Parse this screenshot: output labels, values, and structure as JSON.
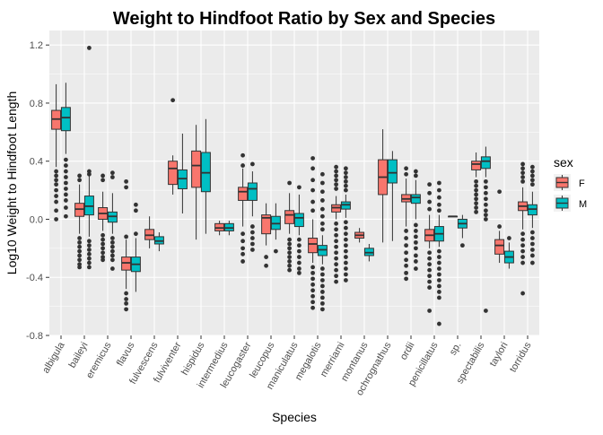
{
  "chart_data": {
    "type": "box",
    "title": "Weight to Hindfoot Ratio by Sex and Species",
    "xlabel": "Species",
    "ylabel": "Log10 Weight to Hindfoot Length",
    "ylim": [
      -0.8,
      1.3
    ],
    "yticks": [
      -0.8,
      -0.4,
      0.0,
      0.4,
      0.8,
      1.2
    ],
    "ytick_labels": [
      "-0.8",
      "-0.4",
      "0.0",
      "0.4",
      "0.8",
      "1.2"
    ],
    "grid": true,
    "legend": {
      "title": "sex",
      "placement": "right",
      "entries": [
        {
          "label": "F",
          "color": "#F8766D"
        },
        {
          "label": "M",
          "color": "#00BFC4"
        }
      ]
    },
    "colors": {
      "F": "#F8766D",
      "M": "#00BFC4",
      "panel": "#EBEBEB",
      "grid": "#FFFFFF",
      "outline": "#333333"
    },
    "categories": [
      "albigula",
      "baileyi",
      "eremicus",
      "flavus",
      "fulvescens",
      "fulviventer",
      "hispidus",
      "intermedius",
      "leucogaster",
      "leucopus",
      "maniculatus",
      "megalotis",
      "merriami",
      "montanus",
      "ochrognathus",
      "ordii",
      "penicillatus",
      "sp.",
      "spectabilis",
      "taylori",
      "torridus"
    ],
    "series": [
      {
        "name": "F",
        "boxes": [
          {
            "category": "albigula",
            "min": 0.36,
            "q1": 0.62,
            "median": 0.69,
            "q3": 0.75,
            "max": 0.93,
            "outliers": [
              0.33,
              0.3,
              0.27,
              0.24,
              0.2,
              0.16,
              0.12,
              0.06,
              0.0
            ]
          },
          {
            "category": "baileyi",
            "min": -0.1,
            "q1": 0.02,
            "median": 0.07,
            "q3": 0.11,
            "max": 0.24,
            "outliers": [
              0.3,
              0.27,
              -0.13,
              -0.16,
              -0.19,
              -0.22,
              -0.25,
              -0.28,
              -0.31,
              -0.33
            ]
          },
          {
            "category": "eremicus",
            "min": -0.08,
            "q1": 0.0,
            "median": 0.04,
            "q3": 0.08,
            "max": 0.19,
            "outliers": [
              0.3,
              0.27,
              -0.11,
              -0.14,
              -0.17,
              -0.2,
              -0.23,
              -0.26,
              -0.28
            ]
          },
          {
            "category": "flavus",
            "min": -0.48,
            "q1": -0.35,
            "median": -0.3,
            "q3": -0.26,
            "max": -0.14,
            "outliers": [
              0.26,
              0.22,
              -0.12,
              -0.51,
              -0.55,
              -0.58,
              -0.62
            ]
          },
          {
            "category": "fulvescens",
            "min": -0.2,
            "q1": -0.14,
            "median": -0.11,
            "q3": -0.07,
            "max": 0.02,
            "outliers": []
          },
          {
            "category": "fulviventer",
            "min": 0.17,
            "q1": 0.24,
            "median": 0.35,
            "q3": 0.4,
            "max": 0.44,
            "outliers": [
              0.82
            ]
          },
          {
            "category": "hispidus",
            "min": -0.14,
            "q1": 0.22,
            "median": 0.37,
            "q3": 0.47,
            "max": 0.65,
            "outliers": []
          },
          {
            "category": "intermedius",
            "min": -0.11,
            "q1": -0.08,
            "median": -0.06,
            "q3": -0.03,
            "max": -0.01,
            "outliers": []
          },
          {
            "category": "leucogaster",
            "min": -0.05,
            "q1": 0.13,
            "median": 0.19,
            "q3": 0.22,
            "max": 0.35,
            "outliers": [
              0.44,
              0.37,
              -0.1,
              -0.15,
              -0.2,
              -0.24,
              -0.29
            ]
          },
          {
            "category": "leucopus",
            "min": -0.18,
            "q1": -0.1,
            "median": 0.01,
            "q3": 0.03,
            "max": 0.11,
            "outliers": [
              -0.26,
              -0.32
            ]
          },
          {
            "category": "maniculatus",
            "min": -0.1,
            "q1": -0.03,
            "median": 0.03,
            "q3": 0.06,
            "max": 0.18,
            "outliers": [
              0.25,
              -0.14,
              -0.17,
              -0.2,
              -0.23,
              -0.26,
              -0.29,
              -0.32,
              -0.35
            ]
          },
          {
            "category": "megalotis",
            "min": -0.3,
            "q1": -0.23,
            "median": -0.17,
            "q3": -0.13,
            "max": 0.0,
            "outliers": [
              0.42,
              0.35,
              0.27,
              0.2,
              0.12,
              0.06,
              -0.33,
              -0.37,
              -0.41,
              -0.45,
              -0.49,
              -0.53,
              -0.57,
              -0.61
            ]
          },
          {
            "category": "merriami",
            "min": 0.0,
            "q1": 0.05,
            "median": 0.08,
            "q3": 0.1,
            "max": 0.16,
            "outliers": [
              0.36,
              0.33,
              0.3,
              0.27,
              0.24,
              0.21,
              -0.03,
              -0.07,
              -0.11,
              -0.15,
              -0.19,
              -0.23,
              -0.27,
              -0.31,
              -0.35,
              -0.39,
              -0.43
            ]
          },
          {
            "category": "montanus",
            "min": -0.16,
            "q1": -0.13,
            "median": -0.11,
            "q3": -0.09,
            "max": -0.06,
            "outliers": []
          },
          {
            "category": "ochrognathus",
            "min": -0.16,
            "q1": 0.17,
            "median": 0.29,
            "q3": 0.41,
            "max": 0.62,
            "outliers": []
          },
          {
            "category": "ordii",
            "min": -0.05,
            "q1": 0.12,
            "median": 0.14,
            "q3": 0.17,
            "max": 0.28,
            "outliers": [
              0.35,
              0.31,
              -0.08,
              -0.13,
              -0.18,
              -0.23,
              -0.28,
              -0.32,
              -0.37,
              -0.41
            ]
          },
          {
            "category": "penicillatus",
            "min": -0.2,
            "q1": -0.15,
            "median": -0.11,
            "q3": -0.07,
            "max": 0.03,
            "outliers": [
              0.24,
              0.18,
              0.12,
              0.07,
              -0.23,
              -0.27,
              -0.31,
              -0.35,
              -0.39,
              -0.43,
              -0.47,
              -0.63
            ]
          },
          {
            "category": "sp.",
            "min": 0.02,
            "q1": 0.02,
            "median": 0.02,
            "q3": 0.02,
            "max": 0.02,
            "outliers": []
          },
          {
            "category": "spectabilis",
            "min": 0.29,
            "q1": 0.34,
            "median": 0.38,
            "q3": 0.4,
            "max": 0.46,
            "outliers": [
              0.26,
              0.23,
              0.2,
              0.17,
              0.14,
              0.11,
              0.08,
              0.05
            ]
          },
          {
            "category": "taylori",
            "min": -0.3,
            "q1": -0.24,
            "median": -0.18,
            "q3": -0.14,
            "max": -0.08,
            "outliers": [
              0.19,
              -0.05
            ]
          },
          {
            "category": "torridus",
            "min": -0.07,
            "q1": 0.06,
            "median": 0.09,
            "q3": 0.12,
            "max": 0.22,
            "outliers": [
              0.38,
              0.35,
              0.32,
              0.29,
              0.26,
              -0.1,
              -0.14,
              -0.18,
              -0.22,
              -0.26,
              -0.3,
              -0.51
            ]
          }
        ]
      },
      {
        "name": "M",
        "boxes": [
          {
            "category": "albigula",
            "min": 0.45,
            "q1": 0.61,
            "median": 0.7,
            "q3": 0.77,
            "max": 0.94,
            "outliers": [
              0.41,
              0.37,
              0.33,
              0.29,
              0.25,
              0.21,
              0.17,
              0.13,
              0.08,
              0.02
            ]
          },
          {
            "category": "baileyi",
            "min": -0.12,
            "q1": 0.03,
            "median": 0.09,
            "q3": 0.16,
            "max": 0.3,
            "outliers": [
              1.18,
              0.33,
              0.31,
              -0.15,
              -0.18,
              -0.21,
              -0.24,
              -0.27,
              -0.3,
              -0.33
            ]
          },
          {
            "category": "eremicus",
            "min": -0.1,
            "q1": -0.02,
            "median": 0.02,
            "q3": 0.05,
            "max": 0.18,
            "outliers": [
              0.32,
              0.29,
              -0.13,
              -0.16,
              -0.19,
              -0.22,
              -0.25,
              -0.28,
              -0.34
            ]
          },
          {
            "category": "flavus",
            "min": -0.5,
            "q1": -0.36,
            "median": -0.31,
            "q3": -0.26,
            "max": -0.13,
            "outliers": [
              0.1,
              0.06,
              -0.1
            ]
          },
          {
            "category": "fulvescens",
            "min": -0.22,
            "q1": -0.17,
            "median": -0.15,
            "q3": -0.12,
            "max": -0.09,
            "outliers": []
          },
          {
            "category": "fulviventer",
            "min": 0.04,
            "q1": 0.21,
            "median": 0.28,
            "q3": 0.34,
            "max": 0.59,
            "outliers": []
          },
          {
            "category": "hispidus",
            "min": -0.1,
            "q1": 0.19,
            "median": 0.32,
            "q3": 0.46,
            "max": 0.69,
            "outliers": []
          },
          {
            "category": "intermedius",
            "min": -0.11,
            "q1": -0.08,
            "median": -0.06,
            "q3": -0.03,
            "max": -0.01,
            "outliers": []
          },
          {
            "category": "leucogaster",
            "min": 0.02,
            "q1": 0.13,
            "median": 0.21,
            "q3": 0.25,
            "max": 0.33,
            "outliers": [
              0.38,
              -0.05,
              -0.09,
              -0.13,
              -0.17,
              -0.21
            ]
          },
          {
            "category": "leucopus",
            "min": -0.14,
            "q1": -0.07,
            "median": -0.03,
            "q3": 0.02,
            "max": 0.11,
            "outliers": [
              -0.22
            ]
          },
          {
            "category": "maniculatus",
            "min": -0.11,
            "q1": -0.05,
            "median": 0.01,
            "q3": 0.04,
            "max": 0.17,
            "outliers": [
              0.22,
              -0.14,
              -0.18,
              -0.22,
              -0.26,
              -0.3,
              -0.34,
              -0.37
            ]
          },
          {
            "category": "megalotis",
            "min": -0.31,
            "q1": -0.25,
            "median": -0.21,
            "q3": -0.18,
            "max": -0.11,
            "outliers": [
              0.31,
              0.25,
              0.19,
              0.13,
              0.07,
              0.02,
              -0.03,
              -0.07,
              -0.34,
              -0.38,
              -0.42,
              -0.46,
              -0.5,
              -0.54,
              -0.58,
              -0.62
            ]
          },
          {
            "category": "merriami",
            "min": 0.01,
            "q1": 0.07,
            "median": 0.1,
            "q3": 0.12,
            "max": 0.17,
            "outliers": [
              0.35,
              0.32,
              0.29,
              0.26,
              0.23,
              0.2,
              -0.02,
              -0.06,
              -0.1,
              -0.14,
              -0.18,
              -0.22,
              -0.26,
              -0.3,
              -0.34,
              -0.38,
              -0.42
            ]
          },
          {
            "category": "montanus",
            "min": -0.29,
            "q1": -0.25,
            "median": -0.23,
            "q3": -0.2,
            "max": -0.17,
            "outliers": []
          },
          {
            "category": "ochrognathus",
            "min": -0.15,
            "q1": 0.25,
            "median": 0.32,
            "q3": 0.41,
            "max": 0.47,
            "outliers": []
          },
          {
            "category": "ordii",
            "min": 0.0,
            "q1": 0.11,
            "median": 0.15,
            "q3": 0.17,
            "max": 0.27,
            "outliers": [
              0.33,
              0.3,
              -0.04,
              -0.08,
              -0.12,
              -0.16,
              -0.2,
              -0.25,
              -0.29,
              -0.34
            ]
          },
          {
            "category": "penicillatus",
            "min": -0.19,
            "q1": -0.15,
            "median": -0.1,
            "q3": -0.05,
            "max": 0.03,
            "outliers": [
              0.25,
              0.2,
              0.15,
              0.1,
              0.06,
              -0.22,
              -0.26,
              -0.3,
              -0.34,
              -0.38,
              -0.42,
              -0.46,
              -0.5,
              -0.54,
              -0.72
            ]
          },
          {
            "category": "sp.",
            "min": -0.13,
            "q1": -0.06,
            "median": -0.03,
            "q3": 0.0,
            "max": 0.03,
            "outliers": [
              -0.18
            ]
          },
          {
            "category": "spectabilis",
            "min": 0.29,
            "q1": 0.35,
            "median": 0.4,
            "q3": 0.43,
            "max": 0.5,
            "outliers": [
              0.26,
              0.22,
              0.18,
              0.14,
              0.1,
              0.06,
              0.03,
              0.0,
              -0.63
            ]
          },
          {
            "category": "taylori",
            "min": -0.34,
            "q1": -0.3,
            "median": -0.26,
            "q3": -0.22,
            "max": -0.16,
            "outliers": [
              -0.13
            ]
          },
          {
            "category": "torridus",
            "min": -0.06,
            "q1": 0.03,
            "median": 0.07,
            "q3": 0.1,
            "max": 0.19,
            "outliers": [
              0.36,
              0.33,
              0.3,
              0.27,
              0.24,
              -0.09,
              -0.13,
              -0.17,
              -0.21,
              -0.25,
              -0.3
            ]
          }
        ]
      }
    ]
  }
}
